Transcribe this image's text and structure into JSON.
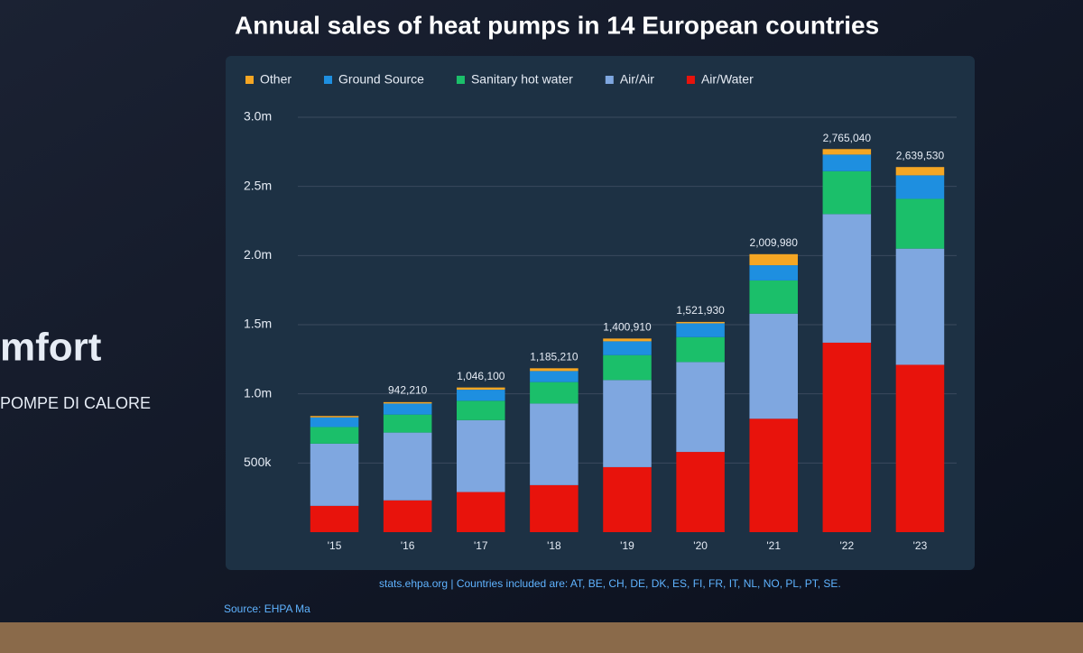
{
  "chart_data": {
    "type": "stacked_bar",
    "title": "Annual sales of heat pumps in 14 European countries",
    "categories": [
      "'15",
      "'16",
      "'17",
      "'18",
      "'19",
      "'20",
      "'21",
      "'22",
      "'23"
    ],
    "series": [
      {
        "name": "Air/Water",
        "color": "#e8130c",
        "values": [
          190000,
          230000,
          290000,
          340000,
          470000,
          580000,
          820000,
          1370000,
          1210000
        ]
      },
      {
        "name": "Air/Air",
        "color": "#7fa7e0",
        "values": [
          450000,
          490000,
          520000,
          590000,
          630000,
          650000,
          760000,
          930000,
          840000
        ]
      },
      {
        "name": "Sanitary hot water",
        "color": "#1bbf6a",
        "values": [
          120000,
          130000,
          140000,
          155000,
          180000,
          180000,
          240000,
          310000,
          360000
        ]
      },
      {
        "name": "Ground Source",
        "color": "#1e8fe0",
        "values": [
          70000,
          80000,
          80000,
          80000,
          100000,
          100000,
          110000,
          120000,
          170000
        ]
      },
      {
        "name": "Other",
        "color": "#f5a623",
        "values": [
          10000,
          10000,
          16000,
          20000,
          20000,
          10000,
          80000,
          40000,
          60000
        ]
      }
    ],
    "totals": [
      null,
      942210,
      1046100,
      1185210,
      1400910,
      1521930,
      2009980,
      2765040,
      2639530
    ],
    "total_labels": [
      null,
      "942,210",
      "1,046,100",
      "1,185,210",
      "1,400,910",
      "1,521,930",
      "2,009,980",
      "2,765,040",
      "2,639,530"
    ],
    "ylim": [
      0,
      3000000
    ],
    "yticks": [
      {
        "value": 500000,
        "label": "500k"
      },
      {
        "value": 1000000,
        "label": "1.0m"
      },
      {
        "value": 1500000,
        "label": "1.5m"
      },
      {
        "value": 2000000,
        "label": "2.0m"
      },
      {
        "value": 2500000,
        "label": "2.5m"
      },
      {
        "value": 3000000,
        "label": "3.0m"
      }
    ],
    "grid": true,
    "source_start": "Source: EHPA Ma",
    "source_rest": "stats.ehpa.org | Countries included are: AT, BE, CH, DE, DK, ES, FI, FR, IT, NL, NO, PL, PT, SE."
  },
  "stage": {
    "brand": "mfort",
    "subtitle": "POMPE DI CALORE"
  }
}
